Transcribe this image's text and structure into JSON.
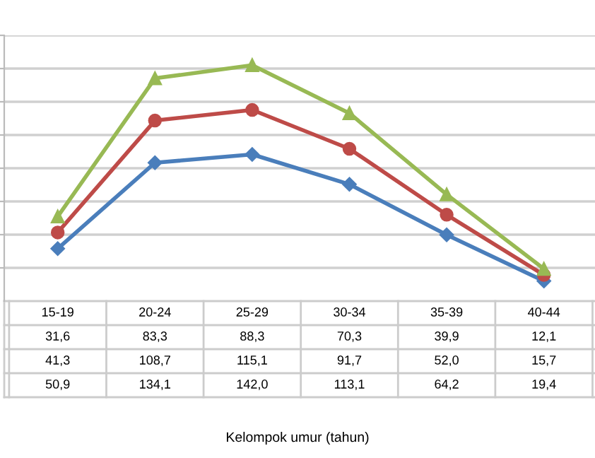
{
  "chart_data": {
    "type": "line",
    "annotations": [
      "Kelompok umur (tahun)"
    ],
    "categories": [
      "15-19",
      "20-24",
      "25-29",
      "30-34",
      "35-39",
      "40-44"
    ],
    "series": [
      {
        "color": "#4a7ebb",
        "marker": "diamond",
        "values": [
          31.6,
          83.3,
          88.3,
          70.3,
          39.9,
          12.1
        ],
        "value_labels": [
          "31,6",
          "83,3",
          "88,3",
          "70,3",
          "39,9",
          "12,1"
        ]
      },
      {
        "color": "#be4b48",
        "marker": "circle",
        "values": [
          41.3,
          108.7,
          115.1,
          91.7,
          52.0,
          15.7
        ],
        "value_labels": [
          "41,3",
          "108,7",
          "115,1",
          "91,7",
          "52,0",
          "15,7"
        ]
      },
      {
        "color": "#98b954",
        "marker": "triangle",
        "values": [
          50.9,
          134.1,
          142.0,
          113.1,
          64.2,
          19.4
        ],
        "value_labels": [
          "50,9",
          "134,1",
          "142,0",
          "113,1",
          "64,2",
          "19,4"
        ]
      }
    ],
    "ylim": [
      0,
      160
    ],
    "yticks": [
      {
        "value": 20,
        "label": null
      },
      {
        "value": 40,
        "label": null
      },
      {
        "value": 60,
        "label": null
      },
      {
        "value": 80,
        "label": null
      },
      {
        "value": 100,
        "label": null
      },
      {
        "value": 120,
        "label": null
      },
      {
        "value": 140,
        "label": null
      },
      {
        "value": 160,
        "label": null
      }
    ],
    "grid": "y",
    "legend": false
  }
}
